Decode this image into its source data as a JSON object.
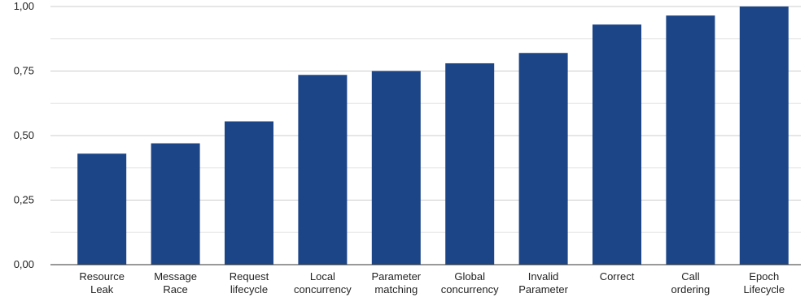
{
  "chart_data": {
    "type": "bar",
    "title": "",
    "xlabel": "",
    "ylabel": "",
    "ylim": [
      0,
      1
    ],
    "y_ticks": [
      "0,00",
      "0,25",
      "0,50",
      "0,75",
      "1,00"
    ],
    "y_tick_values": [
      0,
      0.25,
      0.5,
      0.75,
      1.0
    ],
    "grid": true,
    "minor_grid_step": 0.125,
    "legend": "none",
    "bar_color": "#1c4587",
    "grid_color": "#cccccc",
    "minor_grid_color": "#e6e6e6",
    "categories": [
      [
        "Resource",
        "Leak"
      ],
      [
        "Message",
        "Race"
      ],
      [
        "Request",
        "lifecycle"
      ],
      [
        "Local",
        "concurrency"
      ],
      [
        "Parameter",
        "matching"
      ],
      [
        "Global",
        "concurrency"
      ],
      [
        "Invalid",
        "Parameter"
      ],
      [
        "Correct"
      ],
      [
        "Call",
        "ordering"
      ],
      [
        "Epoch",
        "Lifecycle"
      ]
    ],
    "values": [
      0.43,
      0.47,
      0.555,
      0.735,
      0.75,
      0.78,
      0.82,
      0.93,
      0.965,
      1.0
    ]
  }
}
